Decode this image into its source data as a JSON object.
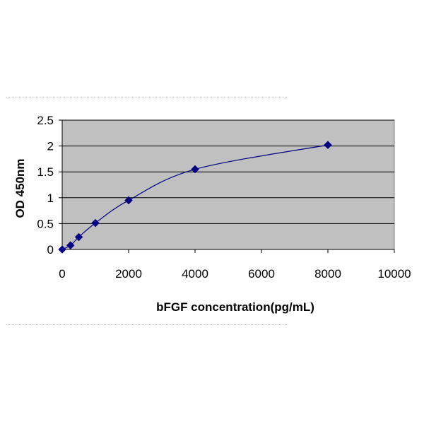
{
  "chart_data": {
    "type": "scatter",
    "title": "",
    "xlabel": "bFGF concentration(pg/mL)",
    "ylabel": "OD 450nm",
    "xlim": [
      0,
      10000
    ],
    "ylim": [
      0,
      2.5
    ],
    "xticks": [
      0,
      2000,
      4000,
      6000,
      8000,
      10000
    ],
    "yticks": [
      0,
      0.5,
      1,
      1.5,
      2,
      2.5
    ],
    "xtick_labels": [
      "0",
      "2000",
      "4000",
      "6000",
      "8000",
      "10000"
    ],
    "ytick_labels": [
      "0",
      "0.5",
      "1",
      "1.5",
      "2",
      "2.5"
    ],
    "grid": "horizontal",
    "legend": "none",
    "smooth_line": true,
    "series": [
      {
        "x": [
          0,
          250,
          500,
          1000,
          2000,
          4000,
          8000
        ],
        "y": [
          0.0,
          0.08,
          0.24,
          0.51,
          0.95,
          1.55,
          2.02
        ],
        "marker": "diamond",
        "color": "#000080"
      }
    ],
    "plot_background": "#c0c0c0"
  }
}
